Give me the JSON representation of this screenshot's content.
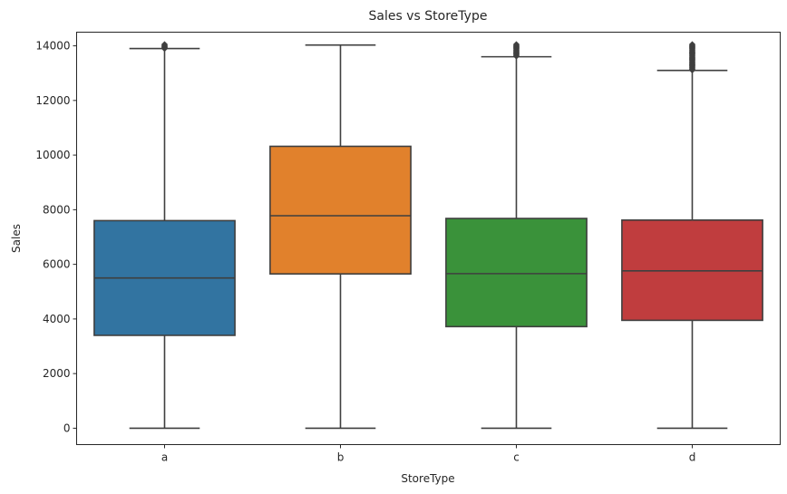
{
  "chart_data": {
    "type": "box",
    "title": "Sales vs StoreType",
    "xlabel": "StoreType",
    "ylabel": "Sales",
    "categories": [
      "a",
      "b",
      "c",
      "d"
    ],
    "ylim": [
      -600,
      14500
    ],
    "yticks": [
      0,
      2000,
      4000,
      6000,
      8000,
      10000,
      12000,
      14000
    ],
    "grid": false,
    "boxes": [
      {
        "category": "a",
        "color": "#3274a1",
        "whisker_low": 0,
        "q1": 3400,
        "median": 5500,
        "q3": 7600,
        "whisker_high": 13900,
        "outliers_range": [
          13900,
          14050
        ]
      },
      {
        "category": "b",
        "color": "#e1812c",
        "whisker_low": 0,
        "q1": 5650,
        "median": 7780,
        "q3": 10320,
        "whisker_high": 14030,
        "outliers_range": []
      },
      {
        "category": "c",
        "color": "#3a923a",
        "whisker_low": 0,
        "q1": 3720,
        "median": 5660,
        "q3": 7680,
        "whisker_high": 13600,
        "outliers_range": [
          13620,
          14050
        ]
      },
      {
        "category": "d",
        "color": "#c03d3e",
        "whisker_low": 0,
        "q1": 3950,
        "median": 5760,
        "q3": 7620,
        "whisker_high": 13100,
        "outliers_range": [
          13110,
          14050
        ]
      }
    ]
  }
}
